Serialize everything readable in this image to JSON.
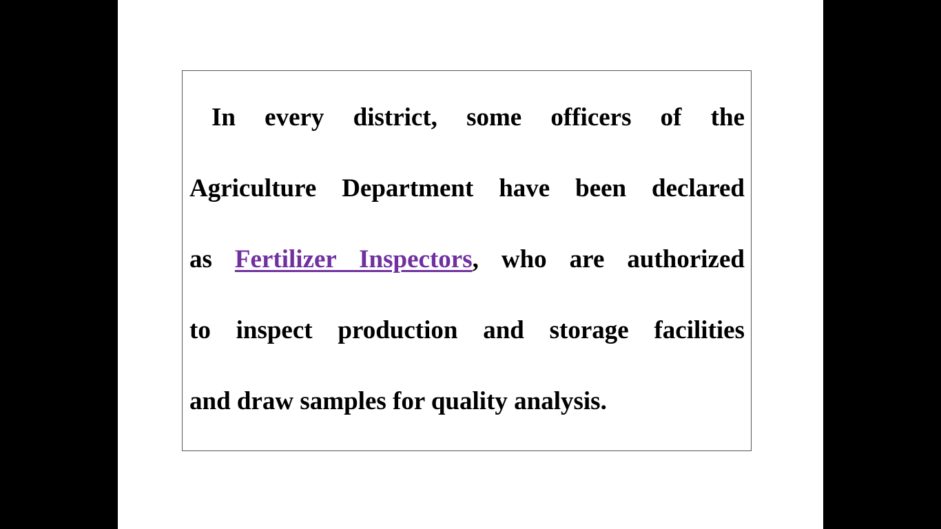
{
  "slide": {
    "background": "#ffffff",
    "link_color": "#7030a0"
  },
  "paragraph": {
    "line1": "In every district, some officers of the",
    "line2": "Agriculture Department have been declared",
    "line3_before": "as ",
    "line3_link": "Fertilizer Inspectors",
    "line3_after": ", who are authorized",
    "line4": "to inspect production and storage facilities",
    "line5": "and draw samples for quality analysis."
  }
}
